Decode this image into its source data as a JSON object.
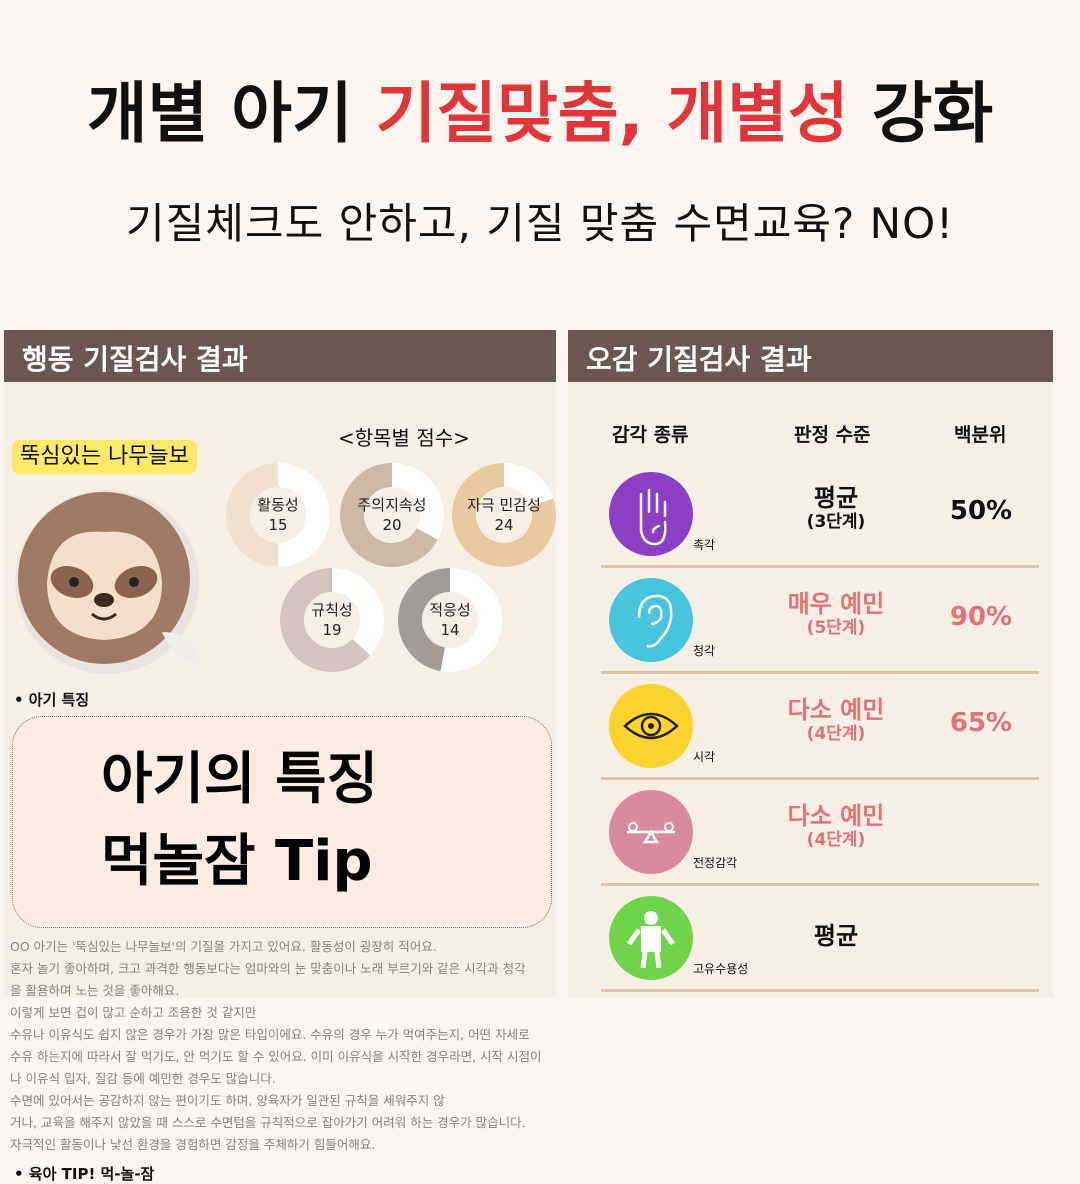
{
  "headline": {
    "part1": "개별 아기 ",
    "part2": "기질맞춤, 개별성",
    "part3": " 강화",
    "accent": "#e0353a"
  },
  "subtitle": "기질체크도 안하고, 기질 맞춤 수면교육? NO!",
  "left_panel": {
    "header": "행동 기질검사 결과",
    "type_badge": "뚝심있는 나무늘보",
    "scores_title": "<항목별 점수>",
    "donuts": [
      {
        "label": "활동성",
        "score": "15",
        "fill": 0.5,
        "color": "#efe0d0"
      },
      {
        "label": "주의지속성",
        "score": "20",
        "fill": 0.67,
        "color": "#cdb9a8"
      },
      {
        "label": "자극 민감성",
        "score": "24",
        "fill": 0.8,
        "color": "#e8c9a0"
      },
      {
        "label": "규칙성",
        "score": "19",
        "fill": 0.63,
        "color": "#d3c4bd"
      },
      {
        "label": "적응성",
        "score": "14",
        "fill": 0.47,
        "color": "#a59a94"
      }
    ],
    "section1": "• 아기 특징",
    "body_lines": [
      "OO 아기는 '뚝심있는 나무늘보'의 기질을 가지고 있어요. 활동성이 굉장히 적어요.",
      "혼자 놀기 좋아하며, 크고 과격한 행동보다는 엄마와의 눈 맞춤이나 노래 부르기와 같은 시각과 청각",
      "을 활용하며 노는 것을 좋아해요.",
      "이렇게 보면 겁이 많고 순하고 조용한 것 같지만",
      "수유나 이유식도 쉽지 않은 경우가 가장 많은 타입이에요. 수유의 경우 누가 먹여주는지, 어떤 자세로",
      "수유 하는지에 따라서 잘 먹기도, 안 먹기도 할 수 있어요. 이미 이유식을 시작한 경우라면, 시작 시점이",
      "나 이유식 입자, 질감 등에 예민한 경우도 많습니다.",
      "수면에 있어서는 공감하지 않는 편이기도 하며, 양육자가 일관된 규칙을 세워주지 않",
      "거나, 교육을 해주지 않았을 때 스스로 수면텀을 규칙적으로 잡아가기 어려워 하는 경우가 많습니다.",
      "자극적인 활동이나 낯선 환경을 경험하면 감정을 주체하기 힘들어해요."
    ],
    "overlay_line1": "아기의 특징",
    "overlay_line2": "먹놀잠 Tip",
    "section2": "• 육아 TIP! 먹-놀-잠"
  },
  "right_panel": {
    "header": "오감 기질검사 결과",
    "columns": [
      "감각 종류",
      "판정 수준",
      "백분위"
    ],
    "rows": [
      {
        "sense": "촉각",
        "icon": "hand-icon",
        "color": "#8a3fc4",
        "level": "평균",
        "stage": "(3단계)",
        "percentile": "50%",
        "highlight": false
      },
      {
        "sense": "청각",
        "icon": "ear-icon",
        "color": "#48c4dc",
        "level": "매우 예민",
        "stage": "(5단계)",
        "percentile": "90%",
        "highlight": true
      },
      {
        "sense": "시각",
        "icon": "eye-icon",
        "color": "#fbd22e",
        "level": "다소 예민",
        "stage": "(4단계)",
        "percentile": "65%",
        "highlight": true
      },
      {
        "sense": "전정감각",
        "icon": "balance-icon",
        "color": "#d98b9c",
        "level": "다소 예민",
        "stage": "(4단계)",
        "percentile": "",
        "highlight": true
      },
      {
        "sense": "고유수용성",
        "icon": "body-icon",
        "color": "#6fd44a",
        "level": "평균",
        "stage": "",
        "percentile": "",
        "highlight": false
      }
    ]
  }
}
